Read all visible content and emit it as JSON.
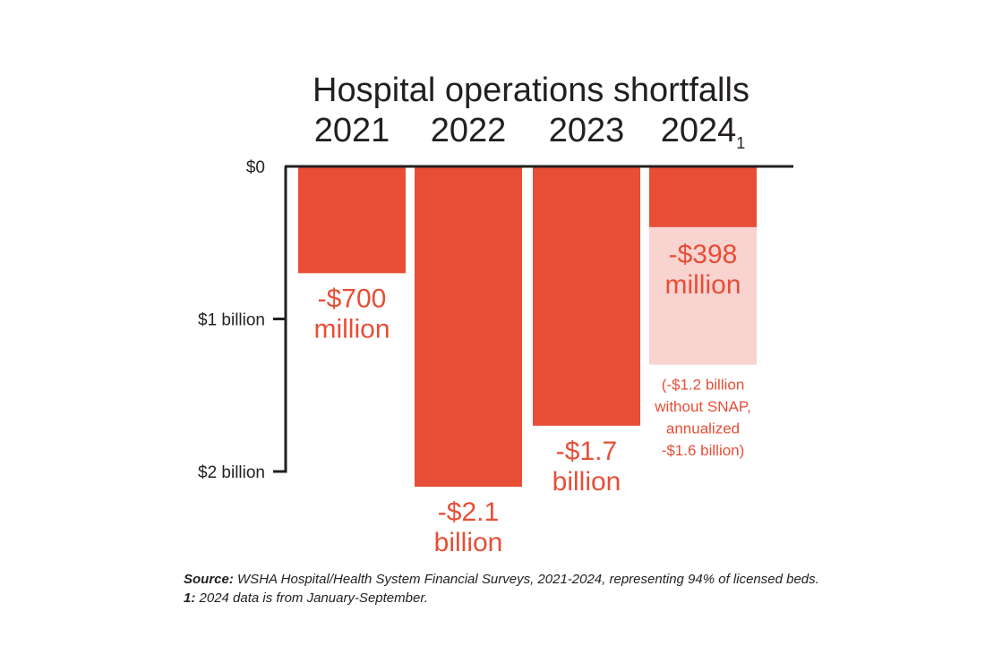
{
  "chart_data": {
    "type": "bar",
    "title": "Hospital operations shortfalls",
    "categories": [
      "2021",
      "2022",
      "2023",
      "2024"
    ],
    "category_footnotes": [
      "",
      "",
      "",
      "1"
    ],
    "unit": "billion USD",
    "series": [
      {
        "values": [
          -0.7,
          -2.1,
          -1.7,
          -0.398
        ],
        "labels": [
          [
            "-$700",
            "million"
          ],
          [
            "-$2.1",
            "billion"
          ],
          [
            "-$1.7",
            "billion"
          ],
          [
            "-$398",
            "million"
          ]
        ]
      }
    ],
    "extra_bar": {
      "category": "2024",
      "value": -1.3,
      "note_lines": [
        "(-$1.2 billion",
        "without SNAP,",
        "annualized",
        "-$1.6 billion)"
      ]
    },
    "y_ticks": [
      {
        "value": 0,
        "label": "$0"
      },
      {
        "value": -1,
        "label": "$1 billion"
      },
      {
        "value": -2,
        "label": "$2 billion"
      }
    ],
    "ylim": [
      -2.1,
      0
    ],
    "grid": false,
    "legend": "none",
    "colors": {
      "bar": "#e84e36",
      "extra_bar": "#f8d3d0",
      "label": "#e84e36",
      "axis": "#231f20"
    }
  },
  "source": {
    "lead": "Source:",
    "text": " WSHA Hospital/Health System Financial Surveys, 2021-2024, representing 94% of licensed beds."
  },
  "footnote": {
    "lead": "1:",
    "text": " 2024 data is from January-September."
  }
}
